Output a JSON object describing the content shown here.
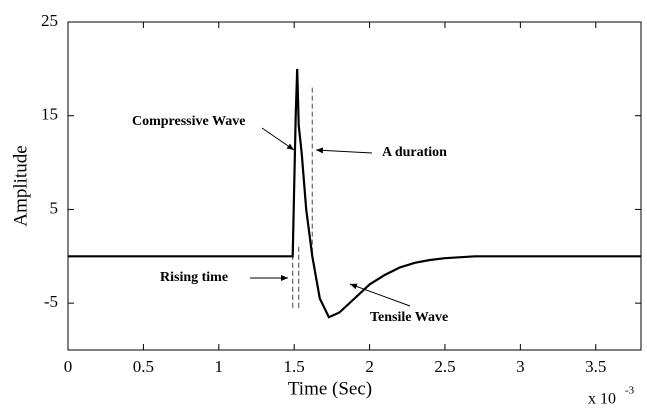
{
  "chart_data": {
    "type": "line",
    "x_label": "Time (Sec)",
    "y_label": "Amplitude",
    "x_multiplier": {
      "base": "x 10",
      "exponent": "-3"
    },
    "x": [
      0,
      1.49,
      1.51,
      1.52,
      1.53,
      1.55,
      1.58,
      1.62,
      1.67,
      1.73,
      1.8,
      1.9,
      2.0,
      2.1,
      2.2,
      2.3,
      2.4,
      2.5,
      2.7,
      2.9,
      3.8
    ],
    "values": [
      0,
      0,
      15,
      20,
      14,
      11,
      5,
      0,
      -4.5,
      -6.5,
      -6,
      -4.5,
      -3,
      -2,
      -1.2,
      -0.7,
      -0.4,
      -0.2,
      0,
      0,
      0
    ],
    "color": "#000000",
    "xlim": [
      0,
      3.8
    ],
    "xticks": [
      0,
      0.5,
      1,
      1.5,
      2,
      2.5,
      3,
      3.5
    ],
    "ylim": [
      -10,
      25
    ],
    "yticks": [
      -5,
      5,
      15,
      25
    ],
    "reference_lines": [
      {
        "x": 1.49,
        "y": [
          1,
          -5.5
        ]
      },
      {
        "x": 1.53,
        "y": [
          1,
          -5.5
        ]
      },
      {
        "x": 1.62,
        "y": [
          18,
          0
        ]
      }
    ],
    "annotations": [
      "Compressive Wave",
      "A duration",
      "Rising time",
      "Tensile Wave"
    ]
  }
}
